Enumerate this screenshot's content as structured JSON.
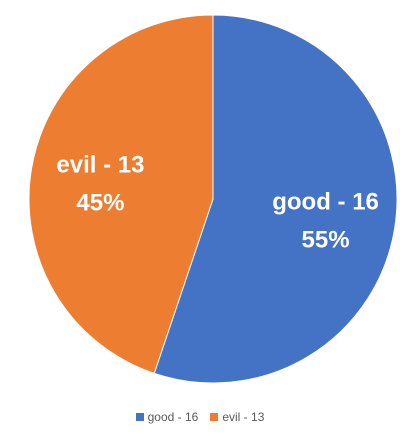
{
  "chart_data": {
    "type": "pie",
    "title": "",
    "start_angle_deg": 0,
    "direction": "clockwise",
    "legend_position": "bottom",
    "slices": [
      {
        "label": "good - 16",
        "value": 16,
        "percent_label": "55%",
        "color": "#4472C4"
      },
      {
        "label": "evil - 13",
        "value": 13,
        "percent_label": "45%",
        "color": "#ED7D31"
      }
    ]
  }
}
